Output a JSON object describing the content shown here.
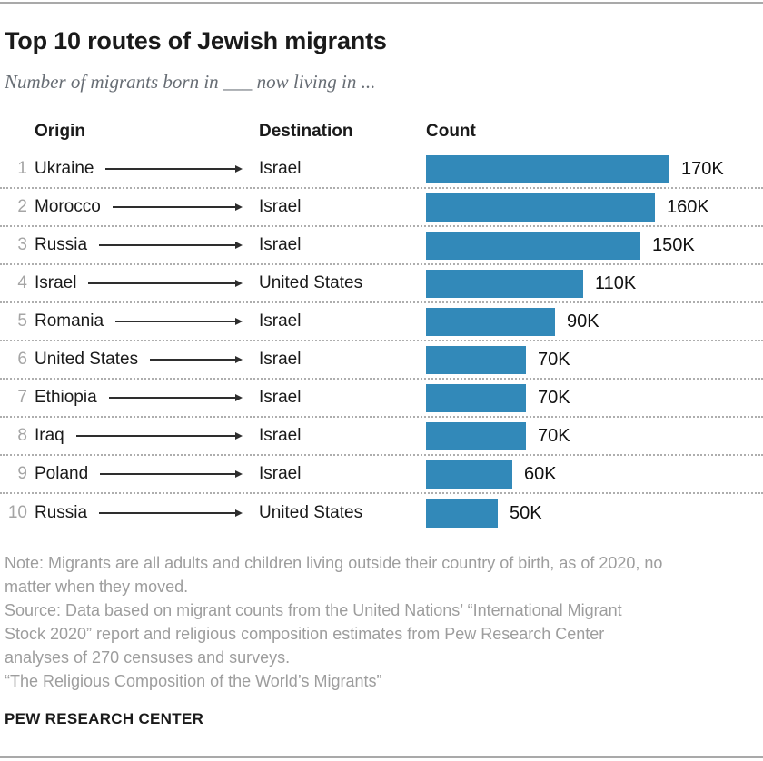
{
  "header": {
    "title": "Top 10 routes of Jewish migrants",
    "subtitle": "Number of migrants born in ___ now living in ..."
  },
  "table_columns": {
    "origin": "Origin",
    "destination": "Destination",
    "count": "Count"
  },
  "chart_data": {
    "type": "bar",
    "title": "Top 10 routes of Jewish migrants",
    "subtitle": "Number of migrants born in ___ now living in ...",
    "orientation": "horizontal",
    "unit": "migrants (K = thousands)",
    "xlim_k": [
      0,
      170
    ],
    "bar_color": "#3289b9",
    "rows": [
      {
        "rank": "1",
        "origin": "Ukraine",
        "destination": "Israel",
        "count_k": 170,
        "count_label": "170K"
      },
      {
        "rank": "2",
        "origin": "Morocco",
        "destination": "Israel",
        "count_k": 160,
        "count_label": "160K"
      },
      {
        "rank": "3",
        "origin": "Russia",
        "destination": "Israel",
        "count_k": 150,
        "count_label": "150K"
      },
      {
        "rank": "4",
        "origin": "Israel",
        "destination": "United States",
        "count_k": 110,
        "count_label": "110K"
      },
      {
        "rank": "5",
        "origin": "Romania",
        "destination": "Israel",
        "count_k": 90,
        "count_label": "90K"
      },
      {
        "rank": "6",
        "origin": "United States",
        "destination": "Israel",
        "count_k": 70,
        "count_label": "70K"
      },
      {
        "rank": "7",
        "origin": "Ethiopia",
        "destination": "Israel",
        "count_k": 70,
        "count_label": "70K"
      },
      {
        "rank": "8",
        "origin": "Iraq",
        "destination": "Israel",
        "count_k": 70,
        "count_label": "70K"
      },
      {
        "rank": "9",
        "origin": "Poland",
        "destination": "Israel",
        "count_k": 60,
        "count_label": "60K"
      },
      {
        "rank": "10",
        "origin": "Russia",
        "destination": "United States",
        "count_k": 50,
        "count_label": "50K"
      }
    ]
  },
  "footer": {
    "note_lines": [
      "Note: Migrants are all adults and children living outside their country of birth, as of 2020, no",
      "matter when they moved.",
      "Source: Data based on migrant counts from the United Nations’ “International Migrant",
      "Stock 2020” report and religious composition estimates from Pew Research Center",
      "analyses of 270 censuses and surveys.",
      "“The Religious Composition of the World’s Migrants”"
    ],
    "brand": "PEW RESEARCH CENTER"
  },
  "colors": {
    "bar": "#3289b9",
    "rule": "#a9a9a9",
    "dotted_separator": "#aeaeae",
    "muted_text": "#9d9d9d",
    "rank_text": "#a5a5a5"
  }
}
